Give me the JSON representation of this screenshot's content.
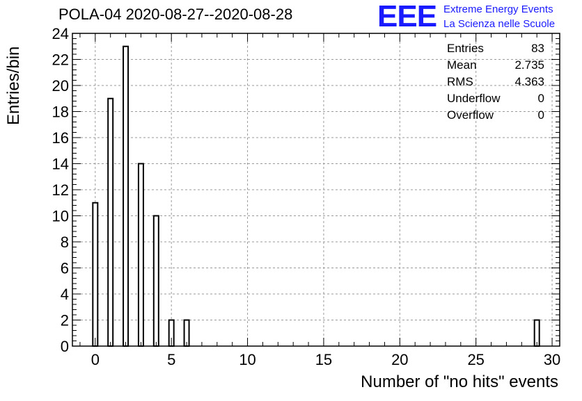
{
  "title": "POLA-04 2020-08-27--2020-08-28",
  "logo": {
    "mark": "EEE",
    "line1": "Extreme Energy Events",
    "line2": "La Scienza nelle Scuole",
    "color": "#1a1aff"
  },
  "stats": [
    {
      "label": "Entries",
      "value": "83"
    },
    {
      "label": "Mean",
      "value": "2.735"
    },
    {
      "label": "RMS",
      "value": "4.363"
    },
    {
      "label": "Underflow",
      "value": "0"
    },
    {
      "label": "Overflow",
      "value": "0"
    }
  ],
  "chart_data": {
    "type": "bar",
    "title": "POLA-04 2020-08-27--2020-08-28",
    "xlabel": "Number of \"no hits\" events",
    "ylabel": "Entries/bin",
    "xlim": [
      -1.5,
      30.5
    ],
    "ylim": [
      0,
      24
    ],
    "x_ticks": [
      0,
      5,
      10,
      15,
      20,
      25,
      30
    ],
    "y_ticks": [
      0,
      2,
      4,
      6,
      8,
      10,
      12,
      14,
      16,
      18,
      20,
      22,
      24
    ],
    "grid": true,
    "bin_width": 0.32,
    "x": [
      0,
      1,
      2,
      3,
      4,
      5,
      6,
      29
    ],
    "values": [
      11,
      19,
      23,
      14,
      10,
      2,
      2,
      2
    ],
    "bar_fill": "#ffffff",
    "bar_stroke": "#000000"
  }
}
